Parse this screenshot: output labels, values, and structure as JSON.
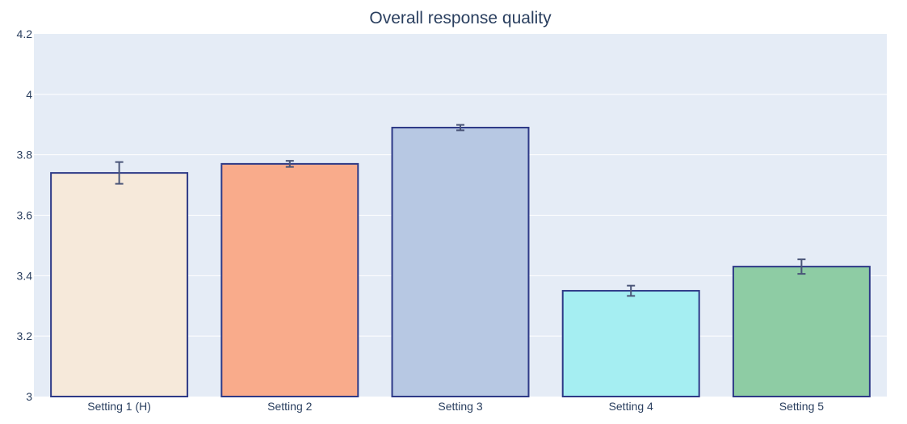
{
  "chart_data": {
    "type": "bar",
    "title": "Overall response quality",
    "xlabel": "",
    "ylabel": "",
    "categories": [
      "Setting 1 (H)",
      "Setting 2",
      "Setting 3",
      "Setting 4",
      "Setting 5"
    ],
    "values": [
      3.74,
      3.77,
      3.89,
      3.35,
      3.43
    ],
    "error": [
      0.036,
      0.01,
      0.009,
      0.017,
      0.024
    ],
    "colors": [
      "#f6e9da",
      "#f9ab8b",
      "#b7c8e3",
      "#a5eef2",
      "#8ecca4"
    ],
    "bar_outline_color": "#2e3a87",
    "error_bar_color": "#4a5578",
    "plot_bg": "#e5ecf6",
    "grid_color": "#ffffff",
    "ylim": [
      3,
      4.2
    ],
    "yticks": [
      "3",
      "3.2",
      "3.4",
      "3.6",
      "3.8",
      "4",
      "4.2"
    ],
    "grid": true
  }
}
